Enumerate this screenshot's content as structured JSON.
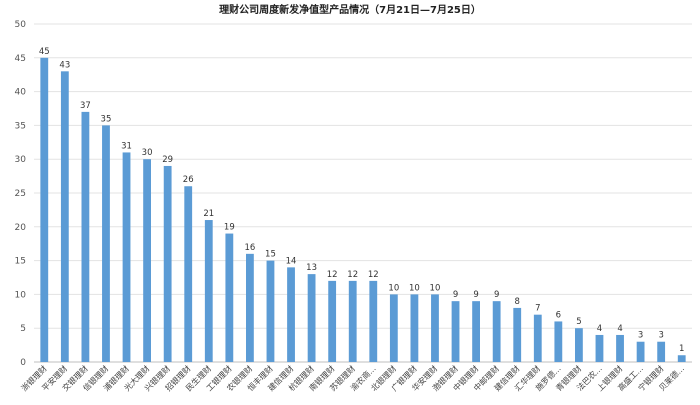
{
  "chart_data": {
    "type": "bar",
    "title": "理财公司周度新发净值型产品情况（7月21日—7月25日）",
    "categories": [
      "浙银理财",
      "平安理财",
      "交银理财",
      "信银理财",
      "浦银理财",
      "光大理财",
      "兴银理财",
      "招银理财",
      "民生理财",
      "工银理财",
      "农银理财",
      "恒丰理财",
      "建信理财",
      "杭银理财",
      "南银理财",
      "苏银理财",
      "渝农商...",
      "北银理财",
      "广银理财",
      "华安理财",
      "渤银理财",
      "中银理财",
      "中邮理财",
      "建信理财",
      "汇华理财",
      "施罗德...",
      "青银理财",
      "法巴农...",
      "上银理财",
      "高盛工...",
      "宁银理财",
      "贝莱德..."
    ],
    "values": [
      45,
      43,
      37,
      35,
      31,
      30,
      29,
      26,
      21,
      19,
      16,
      15,
      14,
      13,
      12,
      12,
      12,
      10,
      10,
      10,
      9,
      9,
      9,
      8,
      7,
      6,
      5,
      4,
      4,
      3,
      3,
      1
    ],
    "xlabel": "",
    "ylabel": "",
    "ylim": [
      0,
      50
    ],
    "yticks": [
      0,
      5,
      10,
      15,
      20,
      25,
      30,
      35,
      40,
      45,
      50
    ],
    "bar_color": "#5b9bd5",
    "grid": true,
    "legend": "none"
  }
}
